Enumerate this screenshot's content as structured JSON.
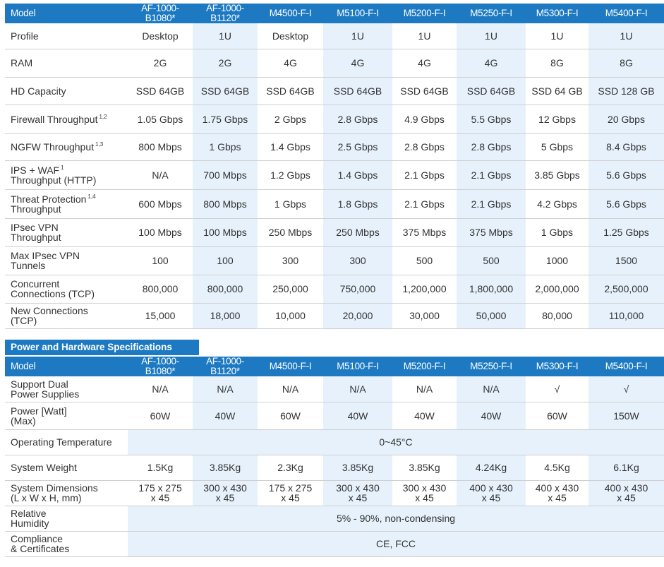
{
  "models": [
    "AF-1000-B1080*",
    "AF-1000-B1120*",
    "M4500-F-I",
    "M5100-F-I",
    "M5200-F-I",
    "M5250-F-I",
    "M5300-F-I",
    "M5400-F-I"
  ],
  "spec_table": {
    "header_label": "Model",
    "rows": [
      {
        "label": "Profile",
        "sup": "",
        "values": [
          "Desktop",
          "1U",
          "Desktop",
          "1U",
          "1U",
          "1U",
          "1U",
          "1U"
        ]
      },
      {
        "label": "RAM",
        "sup": "",
        "values": [
          "2G",
          "2G",
          "4G",
          "4G",
          "4G",
          "4G",
          "8G",
          "8G"
        ]
      },
      {
        "label": "HD Capacity",
        "sup": "",
        "values": [
          "SSD 64GB",
          "SSD 64GB",
          "SSD 64GB",
          "SSD 64GB",
          "SSD 64GB",
          "SSD 64GB",
          "SSD 64 GB",
          "SSD 128 GB"
        ]
      },
      {
        "label": "Firewall Throughput",
        "sup": "1,2",
        "values": [
          "1.05 Gbps",
          "1.75 Gbps",
          "2 Gbps",
          "2.8 Gbps",
          "4.9 Gbps",
          "5.5 Gbps",
          "12 Gbps",
          "20 Gbps"
        ]
      },
      {
        "label": "NGFW Throughput",
        "sup": "1,3",
        "values": [
          "800 Mbps",
          "1 Gbps",
          "1.4 Gbps",
          "2.5 Gbps",
          "2.8 Gbps",
          "2.8 Gbps",
          "5 Gbps",
          "8.4 Gbps"
        ]
      },
      {
        "label": "IPS + WAF",
        "sup": "1",
        "label2": "Throughput (HTTP)",
        "values": [
          "N/A",
          "700 Mbps",
          "1.2 Gbps",
          "1.4 Gbps",
          "2.1 Gbps",
          "2.1 Gbps",
          "3.85 Gbps",
          "5.6 Gbps"
        ]
      },
      {
        "label": "Threat Protection",
        "sup": "1,4",
        "label2": "Throughput",
        "values": [
          "600 Mbps",
          "800 Mbps",
          "1 Gbps",
          "1.8 Gbps",
          "2.1 Gbps",
          "2.1 Gbps",
          "4.2 Gbps",
          "5.6 Gbps"
        ]
      },
      {
        "label": "IPsec VPN",
        "sup": "",
        "label2": "Throughput",
        "values": [
          "100 Mbps",
          "100 Mbps",
          "250 Mbps",
          "250 Mbps",
          "375 Mbps",
          "375 Mbps",
          "1 Gbps",
          "1.25 Gbps"
        ]
      },
      {
        "label": "Max IPsec VPN",
        "sup": "",
        "label2": "Tunnels",
        "values": [
          "100",
          "100",
          "300",
          "300",
          "500",
          "500",
          "1000",
          "1500"
        ]
      },
      {
        "label": "Concurrent",
        "sup": "",
        "label2": "Connections (TCP)",
        "values": [
          "800,000",
          "800,000",
          "250,000",
          "750,000",
          "1,200,000",
          "1,800,000",
          "2,000,000",
          "2,500,000"
        ]
      },
      {
        "label": "New Connections",
        "sup": "",
        "label2": "(TCP)",
        "values": [
          "15,000",
          "18,000",
          "10,000",
          "20,000",
          "30,000",
          "50,000",
          "80,000",
          "110,000"
        ]
      }
    ]
  },
  "power_section": {
    "title": "Power and Hardware Specifications",
    "header_label": "Model",
    "rows": [
      {
        "label": "Support Dual",
        "label2": "Power Supplies",
        "values": [
          "N/A",
          "N/A",
          "N/A",
          "N/A",
          "N/A",
          "N/A",
          "√",
          "√"
        ]
      },
      {
        "label": "Power [Watt]",
        "label2": "(Max)",
        "values": [
          "60W",
          "40W",
          "60W",
          "40W",
          "40W",
          "40W",
          "60W",
          "150W"
        ]
      },
      {
        "label": "Operating Temperature",
        "label2": "",
        "span_value": "0~45°C"
      },
      {
        "label": "System Weight",
        "label2": "",
        "values": [
          "1.5Kg",
          "3.85Kg",
          "2.3Kg",
          "3.85Kg",
          "3.85Kg",
          "4.24Kg",
          "4.5Kg",
          "6.1Kg"
        ]
      },
      {
        "label": "System Dimensions",
        "label2": "(L x W x H, mm)",
        "values": [
          "175 x 275\nx 45",
          "300 x 430\nx 45",
          "175 x 275\nx 45",
          "300 x 430\nx 45",
          "300 x 430\nx 45",
          "400 x 430\nx 45",
          "400 x 430\nx 45",
          "400 x 430\nx 45"
        ]
      },
      {
        "label": "Relative",
        "label2": "Humidity",
        "span_value": "5% - 90%, non-condensing"
      },
      {
        "label": "Compliance",
        "label2": "& Certificates",
        "span_value": "CE, FCC"
      }
    ]
  }
}
